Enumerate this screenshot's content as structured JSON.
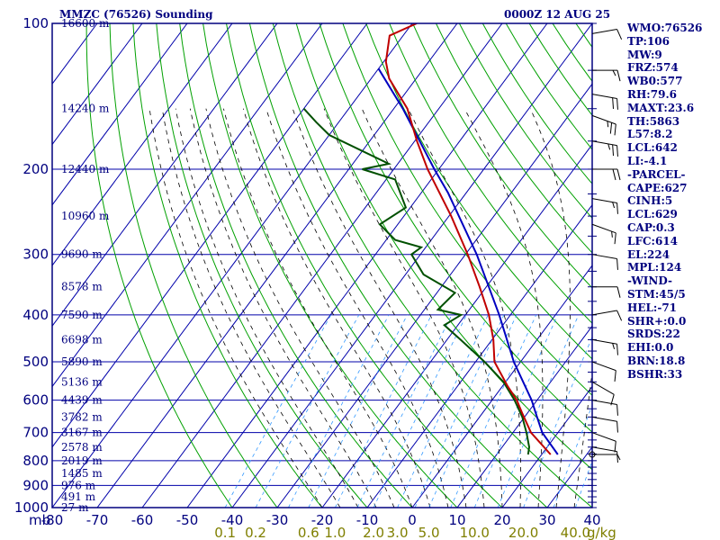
{
  "header": {
    "title": "MMZC (76526) Sounding",
    "time": "0000Z 12 AUG 25"
  },
  "stats": [
    "WMO:76526",
    "TP:106",
    "MW:9",
    "FRZ:574",
    "WB0:577",
    "RH:79.6",
    "MAXT:23.6",
    "TH:5863",
    "L57:8.2",
    "LCL:642",
    "LI:-4.1",
    "-PARCEL-",
    "CAPE:627",
    "CINH:5",
    "LCL:629",
    "CAP:0.3",
    "LFC:614",
    "EL:224",
    "MPL:124",
    "-WIND-",
    "STM:45/5",
    "HEL:-71",
    "SHR+:0.0",
    "SRDS:22",
    "EHI:0.0",
    "BRN:18.8",
    "BSHR:33"
  ],
  "colors": {
    "frame": "#00007f",
    "grid": "#0000aa",
    "dry_adiabat": "#00a000",
    "moist_adiabat": "#000000",
    "mixing_ratio": "#3399ff",
    "temperature": "#c00000",
    "dewpoint": "#005000",
    "parcel": "#0000c0",
    "mixing_label": "#7f7f00"
  },
  "chart_data": {
    "type": "skew-t",
    "pressure_axis": {
      "unit_label": "mb",
      "ticks": [
        100,
        200,
        300,
        400,
        500,
        600,
        700,
        800,
        900,
        1000
      ],
      "labels": [
        "100",
        "200",
        "300",
        "400",
        "500",
        "600",
        "700",
        "800",
        "900",
        "1000"
      ]
    },
    "temperature_axis": {
      "ticks": [
        -80,
        -70,
        -60,
        -50,
        -40,
        -30,
        -20,
        -10,
        0,
        10,
        20,
        30,
        40
      ],
      "labels": [
        "-80",
        "-70",
        "-60",
        "-50",
        "-40",
        "-30",
        "-20",
        "-10",
        "0",
        "10",
        "20",
        "30",
        "40"
      ]
    },
    "height_labels": [
      {
        "p": 100,
        "label": "16600 m"
      },
      {
        "p": 150,
        "label": "14240 m"
      },
      {
        "p": 200,
        "label": "12440 m"
      },
      {
        "p": 250,
        "label": "10960 m"
      },
      {
        "p": 300,
        "label": "9690 m"
      },
      {
        "p": 350,
        "label": "8578 m"
      },
      {
        "p": 400,
        "label": "7590 m"
      },
      {
        "p": 450,
        "label": "6698 m"
      },
      {
        "p": 500,
        "label": "5890 m"
      },
      {
        "p": 550,
        "label": "5136 m"
      },
      {
        "p": 600,
        "label": "4439 m"
      },
      {
        "p": 650,
        "label": "3782 m"
      },
      {
        "p": 700,
        "label": "3167 m"
      },
      {
        "p": 750,
        "label": "2578 m"
      },
      {
        "p": 800,
        "label": "2019 m"
      },
      {
        "p": 850,
        "label": "1485 m"
      },
      {
        "p": 900,
        "label": "976 m"
      },
      {
        "p": 950,
        "label": "491 m"
      },
      {
        "p": 1000,
        "label": "27 m"
      }
    ],
    "mixing_ratio_labels": [
      "0.1",
      "0.2",
      "0.6",
      "1.0",
      "2.0",
      "3.0",
      "5.0",
      "10.0",
      "20.0",
      "40.0"
    ],
    "mixing_ratio_unit": "g/kg",
    "temperature_profile": [
      {
        "p": 777,
        "t": 22
      },
      {
        "p": 700,
        "t": 14
      },
      {
        "p": 640,
        "t": 9
      },
      {
        "p": 600,
        "t": 5.5
      },
      {
        "p": 560,
        "t": 1
      },
      {
        "p": 500,
        "t": -5.8
      },
      {
        "p": 450,
        "t": -9.7
      },
      {
        "p": 400,
        "t": -14.8
      },
      {
        "p": 350,
        "t": -21.5
      },
      {
        "p": 300,
        "t": -29.5
      },
      {
        "p": 250,
        "t": -39.5
      },
      {
        "p": 200,
        "t": -52.5
      },
      {
        "p": 175,
        "t": -59.5
      },
      {
        "p": 150,
        "t": -67
      },
      {
        "p": 130,
        "t": -76
      },
      {
        "p": 120,
        "t": -79.5
      },
      {
        "p": 106,
        "t": -83
      },
      {
        "p": 100,
        "t": -79
      }
    ],
    "dewpoint_profile": [
      {
        "p": 777,
        "t": 17
      },
      {
        "p": 750,
        "t": 16
      },
      {
        "p": 700,
        "t": 13
      },
      {
        "p": 650,
        "t": 9.5
      },
      {
        "p": 600,
        "t": 5
      },
      {
        "p": 550,
        "t": -0.5
      },
      {
        "p": 500,
        "t": -8
      },
      {
        "p": 450,
        "t": -17
      },
      {
        "p": 420,
        "t": -23
      },
      {
        "p": 400,
        "t": -21
      },
      {
        "p": 390,
        "t": -27
      },
      {
        "p": 360,
        "t": -26
      },
      {
        "p": 330,
        "t": -36
      },
      {
        "p": 300,
        "t": -42
      },
      {
        "p": 290,
        "t": -41
      },
      {
        "p": 280,
        "t": -48
      },
      {
        "p": 260,
        "t": -54
      },
      {
        "p": 240,
        "t": -51
      },
      {
        "p": 210,
        "t": -58
      },
      {
        "p": 200,
        "t": -67
      },
      {
        "p": 195,
        "t": -62
      },
      {
        "p": 170,
        "t": -80
      },
      {
        "p": 160,
        "t": -85
      },
      {
        "p": 150,
        "t": -90
      }
    ],
    "parcel_profile": [
      {
        "p": 777,
        "t": 23.6
      },
      {
        "p": 700,
        "t": 16.5
      },
      {
        "p": 640,
        "t": 12
      },
      {
        "p": 600,
        "t": 8.8
      },
      {
        "p": 500,
        "t": -1.5
      },
      {
        "p": 400,
        "t": -12.5
      },
      {
        "p": 300,
        "t": -27.5
      },
      {
        "p": 224,
        "t": -44
      },
      {
        "p": 200,
        "t": -51
      },
      {
        "p": 150,
        "t": -68
      },
      {
        "p": 124,
        "t": -80
      }
    ],
    "wind_barbs": [
      {
        "p": 105,
        "dir": 80,
        "spd": 10
      },
      {
        "p": 125,
        "dir": 90,
        "spd": 15
      },
      {
        "p": 140,
        "dir": 100,
        "spd": 20
      },
      {
        "p": 155,
        "dir": 110,
        "spd": 25
      },
      {
        "p": 175,
        "dir": 100,
        "spd": 25
      },
      {
        "p": 200,
        "dir": 90,
        "spd": 20
      },
      {
        "p": 230,
        "dir": 100,
        "spd": 15
      },
      {
        "p": 260,
        "dir": 110,
        "spd": 15
      },
      {
        "p": 300,
        "dir": 100,
        "spd": 10
      },
      {
        "p": 350,
        "dir": 90,
        "spd": 10
      },
      {
        "p": 400,
        "dir": 80,
        "spd": 10
      },
      {
        "p": 450,
        "dir": 100,
        "spd": 15
      },
      {
        "p": 500,
        "dir": 110,
        "spd": 10
      },
      {
        "p": 550,
        "dir": 120,
        "spd": 10
      },
      {
        "p": 600,
        "dir": 100,
        "spd": 10
      },
      {
        "p": 650,
        "dir": 100,
        "spd": 10
      },
      {
        "p": 700,
        "dir": 110,
        "spd": 10
      },
      {
        "p": 750,
        "dir": 100,
        "spd": 10
      },
      {
        "p": 777,
        "dir": 90,
        "spd": 5
      }
    ]
  }
}
